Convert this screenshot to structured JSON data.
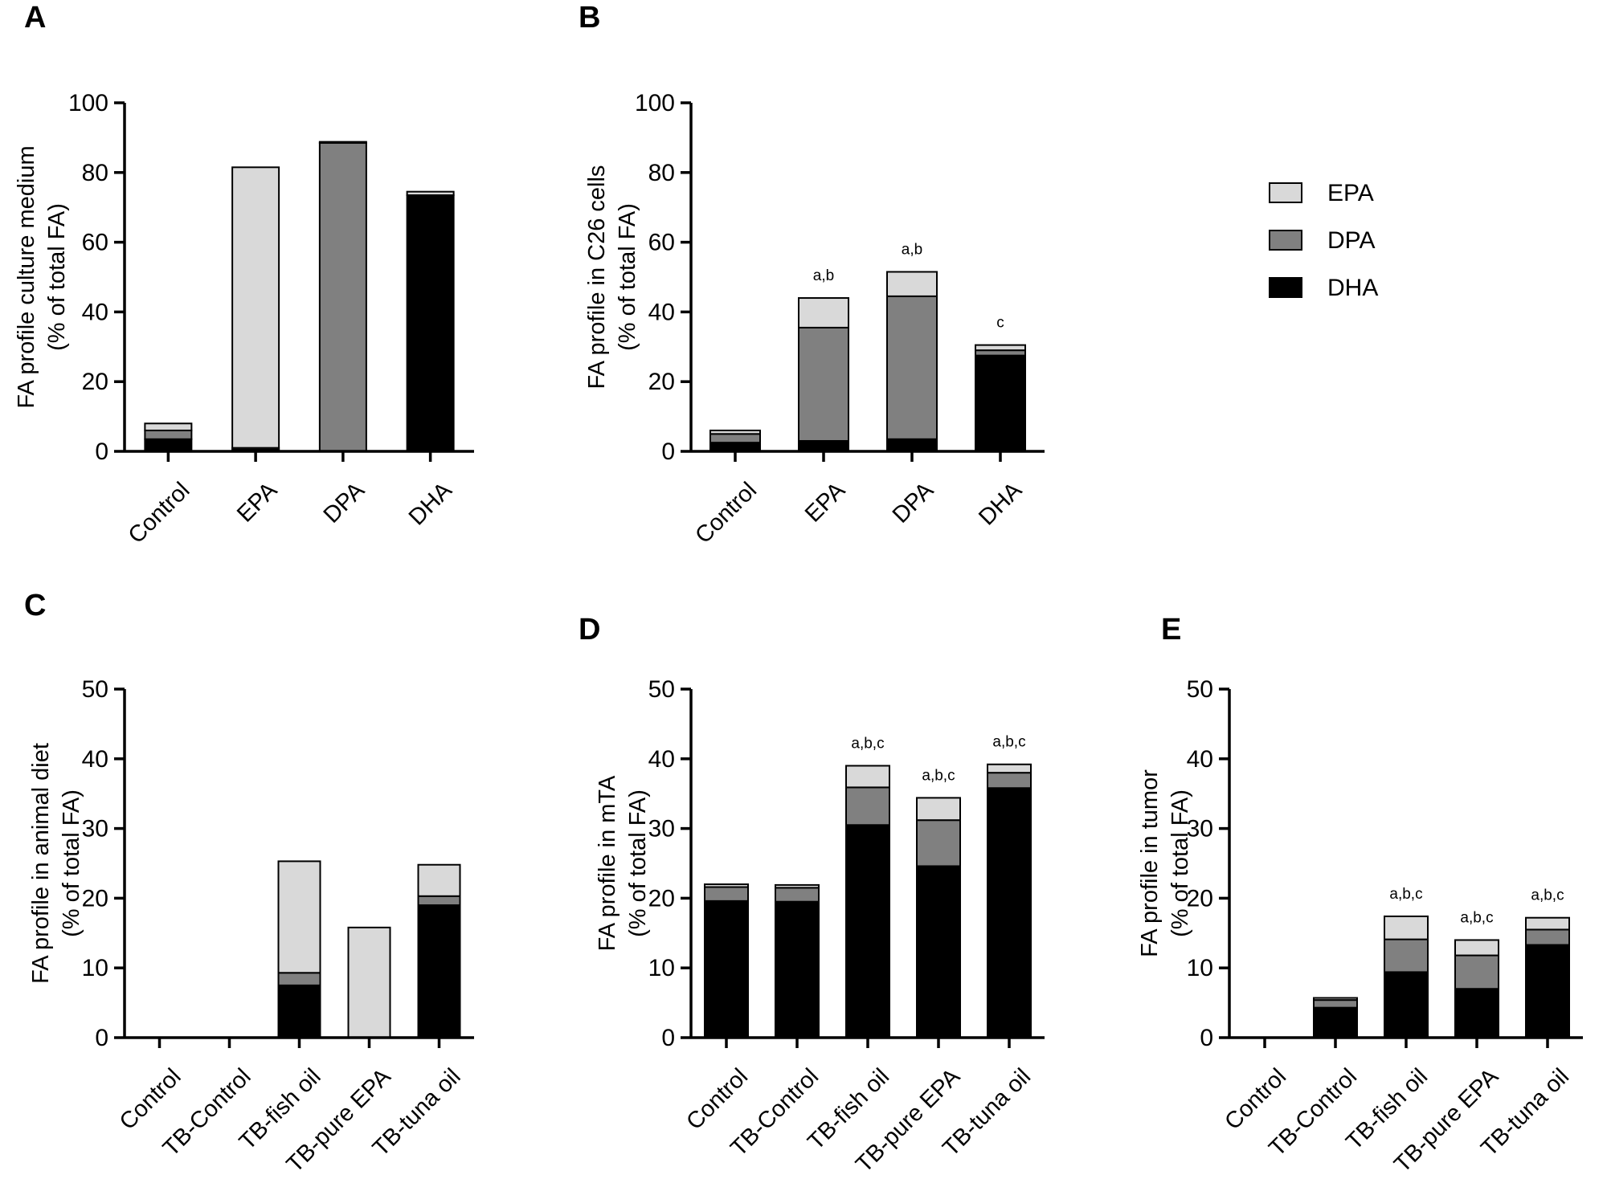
{
  "legend": [
    {
      "name": "EPA",
      "color": "#d9d9d9"
    },
    {
      "name": "DPA",
      "color": "#808080"
    },
    {
      "name": "DHA",
      "color": "#000000"
    }
  ],
  "chart_data": [
    {
      "panel": "A",
      "type": "bar",
      "stacked": true,
      "ylabel": [
        "FA profile culture medium",
        "(% of total FA)"
      ],
      "ylim": [
        0,
        100
      ],
      "yticks": [
        0,
        20,
        40,
        60,
        80,
        100
      ],
      "categories": [
        "Control",
        "EPA",
        "DPA",
        "DHA"
      ],
      "series": [
        {
          "name": "DHA",
          "values": [
            3.5,
            0.5,
            0,
            73.5
          ]
        },
        {
          "name": "DPA",
          "values": [
            2.5,
            0.5,
            88.5,
            0
          ]
        },
        {
          "name": "EPA",
          "values": [
            2,
            80.5,
            0.3,
            1
          ]
        }
      ],
      "annotations": [
        "",
        "",
        "",
        ""
      ]
    },
    {
      "panel": "B",
      "type": "bar",
      "stacked": true,
      "ylabel": [
        "FA profile in C26 cells",
        "(% of total FA)"
      ],
      "ylim": [
        0,
        100
      ],
      "yticks": [
        0,
        20,
        40,
        60,
        80,
        100
      ],
      "categories": [
        "Control",
        "EPA",
        "DPA",
        "DHA"
      ],
      "series": [
        {
          "name": "DHA",
          "values": [
            2.5,
            3,
            3.5,
            27.5
          ]
        },
        {
          "name": "DPA",
          "values": [
            2.5,
            32.5,
            41,
            1.5
          ]
        },
        {
          "name": "EPA",
          "values": [
            1,
            8.5,
            7,
            1.5
          ]
        }
      ],
      "annotations": [
        "",
        "a,b",
        "a,b",
        "c"
      ]
    },
    {
      "panel": "C",
      "type": "bar",
      "stacked": true,
      "ylabel": [
        "FA profile in animal diet",
        "(% of total FA)"
      ],
      "ylim": [
        0,
        50
      ],
      "yticks": [
        0,
        10,
        20,
        30,
        40,
        50
      ],
      "categories": [
        "Control",
        "TB-Control",
        "TB-fish oil",
        "TB-pure EPA",
        "TB-tuna oil"
      ],
      "series": [
        {
          "name": "DHA",
          "values": [
            0,
            0,
            7.5,
            0,
            19
          ]
        },
        {
          "name": "DPA",
          "values": [
            0,
            0,
            1.8,
            0,
            1.3
          ]
        },
        {
          "name": "EPA",
          "values": [
            0,
            0,
            16,
            15.8,
            4.5
          ]
        }
      ],
      "annotations": [
        "",
        "",
        "",
        "",
        ""
      ]
    },
    {
      "panel": "D",
      "type": "bar",
      "stacked": true,
      "ylabel": [
        "FA profile in mTA",
        "(% of total FA)"
      ],
      "ylim": [
        0,
        50
      ],
      "yticks": [
        0,
        10,
        20,
        30,
        40,
        50
      ],
      "categories": [
        "Control",
        "TB-Control",
        "TB-fish oil",
        "TB-pure EPA",
        "TB-tuna oil"
      ],
      "series": [
        {
          "name": "DHA",
          "values": [
            19.6,
            19.5,
            30.5,
            24.6,
            35.8
          ]
        },
        {
          "name": "DPA",
          "values": [
            2,
            2,
            5.4,
            6.6,
            2.2
          ]
        },
        {
          "name": "EPA",
          "values": [
            0.4,
            0.4,
            3.1,
            3.2,
            1.2
          ]
        }
      ],
      "annotations": [
        "",
        "",
        "a,b,c",
        "a,b,c",
        "a,b,c"
      ]
    },
    {
      "panel": "E",
      "type": "bar",
      "stacked": true,
      "ylabel": [
        "FA profile in tumor",
        "(% of total FA)"
      ],
      "ylim": [
        0,
        50
      ],
      "yticks": [
        0,
        10,
        20,
        30,
        40,
        50
      ],
      "categories": [
        "Control",
        "TB-Control",
        "TB-fish oil",
        "TB-pure EPA",
        "TB-tuna oil"
      ],
      "series": [
        {
          "name": "DHA",
          "values": [
            0,
            4.3,
            9.4,
            7,
            13.3
          ]
        },
        {
          "name": "DPA",
          "values": [
            0,
            1.1,
            4.7,
            4.8,
            2.2
          ]
        },
        {
          "name": "EPA",
          "values": [
            0,
            0.3,
            3.3,
            2.2,
            1.7
          ]
        }
      ],
      "annotations": [
        "",
        "",
        "a,b,c",
        "a,b,c",
        "a,b,c"
      ]
    }
  ]
}
